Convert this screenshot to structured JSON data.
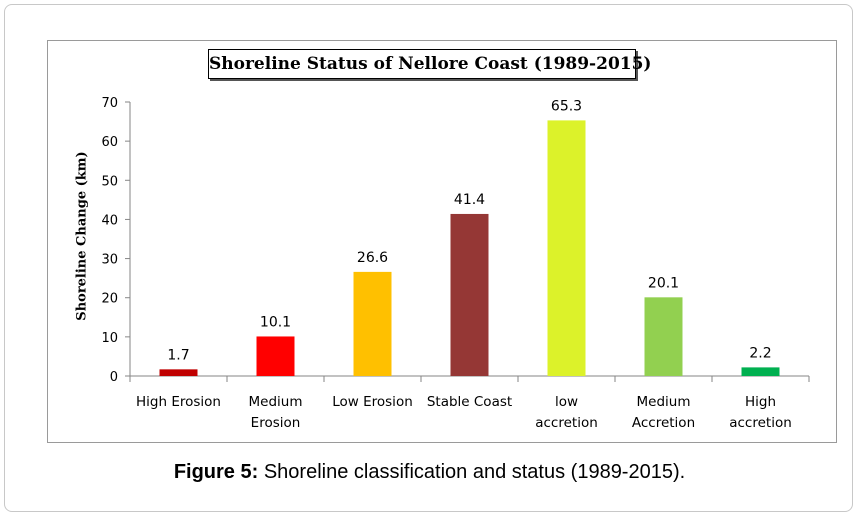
{
  "chart_data": {
    "type": "bar",
    "title": "Shoreline  Status of Nellore Coast  (1989-2015)",
    "ylabel": "Shoreline  Change (km)",
    "xlabel": "",
    "ylim": [
      0,
      70
    ],
    "yticks": [
      0,
      10,
      20,
      30,
      40,
      50,
      60,
      70
    ],
    "grid": false,
    "categories": [
      [
        "High Erosion"
      ],
      [
        "Medium",
        "Erosion"
      ],
      [
        "Low Erosion"
      ],
      [
        "Stable Coast"
      ],
      [
        "low",
        "accretion"
      ],
      [
        "Medium",
        "Accretion"
      ],
      [
        "High",
        "accretion"
      ]
    ],
    "values": [
      1.7,
      10.1,
      26.6,
      41.4,
      65.3,
      20.1,
      2.2
    ],
    "value_labels": [
      "1.7",
      "10.1",
      "26.6",
      "41.4",
      "65.3",
      "20.1",
      "2.2"
    ],
    "colors": [
      "#c00000",
      "#ff0000",
      "#ffc000",
      "#953735",
      "#dcf22a",
      "#92d050",
      "#00b050"
    ]
  },
  "caption": {
    "label": "Figure 5:",
    "text": " Shoreline classification and status (1989-2015)."
  }
}
